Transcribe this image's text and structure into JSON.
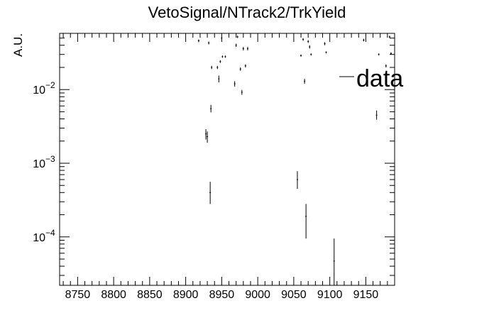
{
  "chart_data": {
    "type": "scatter",
    "title": "VetoSignal/NTrack2/TrkYield",
    "xlabel": "",
    "ylabel": "A.U.",
    "xlim": [
      8725,
      9190
    ],
    "ylim": [
      2.2e-05,
      0.058
    ],
    "yscale": "log",
    "grid": false,
    "legend": {
      "position": "top-right",
      "entries": [
        "data"
      ]
    },
    "x_ticks": [
      {
        "value": 8750,
        "label": "8750"
      },
      {
        "value": 8800,
        "label": "8800"
      },
      {
        "value": 8850,
        "label": "8850"
      },
      {
        "value": 8900,
        "label": "8900"
      },
      {
        "value": 8950,
        "label": "8950"
      },
      {
        "value": 9000,
        "label": "9000"
      },
      {
        "value": 9050,
        "label": "9050"
      },
      {
        "value": 9100,
        "label": "9100"
      },
      {
        "value": 9150,
        "label": "9150"
      }
    ],
    "y_ticks": [
      {
        "value": 0.0001,
        "mant": "10",
        "exp": "−4"
      },
      {
        "value": 0.001,
        "mant": "10",
        "exp": "−3"
      },
      {
        "value": 0.01,
        "mant": "10",
        "exp": "−2"
      }
    ],
    "series": [
      {
        "name": "data",
        "points": [
          {
            "x": 8918,
            "y": 0.046,
            "lo": 0.044,
            "hi": 0.048
          },
          {
            "x": 8928,
            "y": 0.0025,
            "lo": 0.0021,
            "hi": 0.0029
          },
          {
            "x": 8930,
            "y": 0.0023,
            "lo": 0.0019,
            "hi": 0.0027
          },
          {
            "x": 8932,
            "y": 0.043,
            "lo": 0.041,
            "hi": 0.045
          },
          {
            "x": 8934,
            "y": 0.0004,
            "lo": 0.00028,
            "hi": 0.00056
          },
          {
            "x": 8935,
            "y": 0.0055,
            "lo": 0.0049,
            "hi": 0.0062
          },
          {
            "x": 8936,
            "y": 0.02,
            "lo": 0.019,
            "hi": 0.021
          },
          {
            "x": 8944,
            "y": 0.02,
            "lo": 0.019,
            "hi": 0.021
          },
          {
            "x": 8946,
            "y": 0.014,
            "lo": 0.0125,
            "hi": 0.0155
          },
          {
            "x": 8948,
            "y": 0.024,
            "lo": 0.023,
            "hi": 0.025
          },
          {
            "x": 8950,
            "y": 0.05,
            "lo": 0.048,
            "hi": 0.052
          },
          {
            "x": 8951,
            "y": 0.028,
            "lo": 0.027,
            "hi": 0.029
          },
          {
            "x": 8955,
            "y": 0.028,
            "lo": 0.027,
            "hi": 0.029
          },
          {
            "x": 8968,
            "y": 0.012,
            "lo": 0.011,
            "hi": 0.013
          },
          {
            "x": 8970,
            "y": 0.04,
            "lo": 0.038,
            "hi": 0.042
          },
          {
            "x": 8972,
            "y": 0.052,
            "lo": 0.05,
            "hi": 0.054
          },
          {
            "x": 8976,
            "y": 0.019,
            "lo": 0.018,
            "hi": 0.02
          },
          {
            "x": 8978,
            "y": 0.0092,
            "lo": 0.0085,
            "hi": 0.0099
          },
          {
            "x": 8980,
            "y": 0.036,
            "lo": 0.034,
            "hi": 0.038
          },
          {
            "x": 8983,
            "y": 0.021,
            "lo": 0.02,
            "hi": 0.022
          },
          {
            "x": 8986,
            "y": 0.036,
            "lo": 0.034,
            "hi": 0.038
          },
          {
            "x": 9055,
            "y": 0.0006,
            "lo": 0.00045,
            "hi": 0.00078
          },
          {
            "x": 9060,
            "y": 0.029,
            "lo": 0.028,
            "hi": 0.03
          },
          {
            "x": 9063,
            "y": 0.048,
            "lo": 0.046,
            "hi": 0.05
          },
          {
            "x": 9065,
            "y": 0.013,
            "lo": 0.012,
            "hi": 0.014
          },
          {
            "x": 9067,
            "y": 0.00019,
            "lo": 9.5e-05,
            "hi": 0.00028
          },
          {
            "x": 9070,
            "y": 0.045,
            "lo": 0.043,
            "hi": 0.047
          },
          {
            "x": 9072,
            "y": 0.038,
            "lo": 0.036,
            "hi": 0.04
          },
          {
            "x": 9074,
            "y": 0.03,
            "lo": 0.029,
            "hi": 0.031
          },
          {
            "x": 9093,
            "y": 0.042,
            "lo": 0.04,
            "hi": 0.044
          },
          {
            "x": 9095,
            "y": 0.032,
            "lo": 0.031,
            "hi": 0.033
          },
          {
            "x": 9106,
            "y": 4.7e-05,
            "lo": 2.2e-05,
            "hi": 9.5e-05
          },
          {
            "x": 9147,
            "y": 0.047,
            "lo": 0.045,
            "hi": 0.049
          },
          {
            "x": 9165,
            "y": 0.0045,
            "lo": 0.0039,
            "hi": 0.0052
          },
          {
            "x": 9168,
            "y": 0.03,
            "lo": 0.029,
            "hi": 0.031
          },
          {
            "x": 9178,
            "y": 0.021,
            "lo": 0.02,
            "hi": 0.022
          },
          {
            "x": 9183,
            "y": 0.052,
            "lo": 0.05,
            "hi": 0.054
          },
          {
            "x": 9185,
            "y": 0.031,
            "lo": 0.03,
            "hi": 0.032
          }
        ]
      }
    ]
  }
}
